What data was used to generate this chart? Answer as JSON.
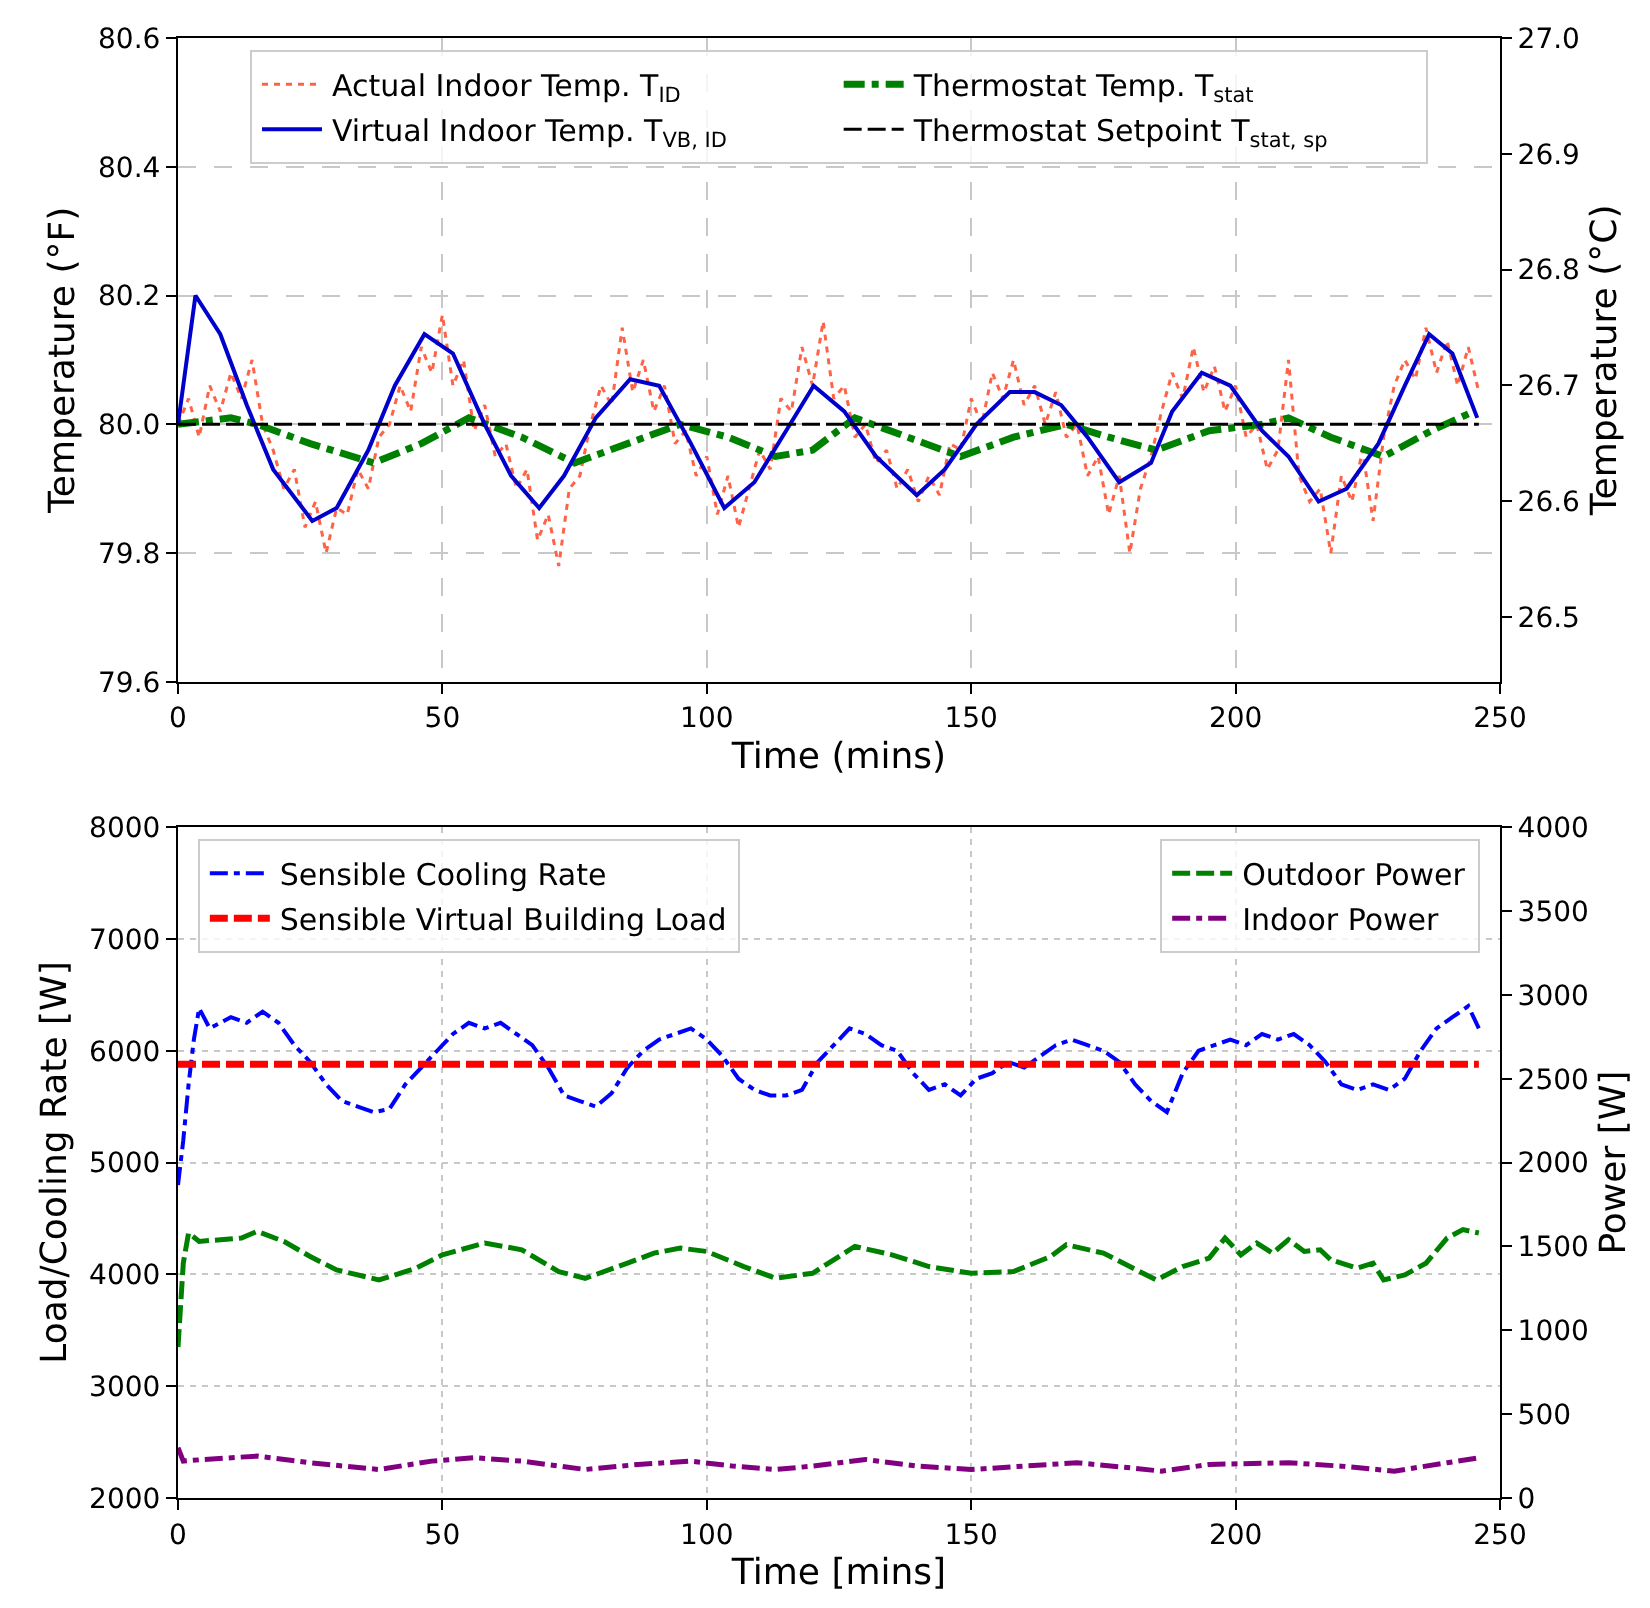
{
  "chart_data": [
    {
      "type": "line",
      "xlabel": "Time (mins)",
      "ylabel": "Temperature (°F)",
      "y2label": "Temperature (°C)",
      "xlim": [
        0,
        250
      ],
      "xticks": [
        0,
        50,
        100,
        150,
        200,
        250
      ],
      "ylim": [
        79.6,
        80.6
      ],
      "yticks": [
        79.6,
        79.8,
        {
          "value": 80.0,
          "label": "80.0"
        },
        80.2,
        80.4,
        80.6
      ],
      "y2lim": [
        26.444,
        27.0
      ],
      "y2ticks": [
        26.5,
        26.6,
        26.7,
        26.8,
        26.9,
        {
          "value": 27.0,
          "label": "27.0"
        }
      ],
      "grid": true,
      "legend": "top",
      "marker": "none",
      "series": [
        {
          "name": "Actual Indoor Temp. T$_{ID}$",
          "color": "#ff6347",
          "line_style": "dotted",
          "x": [
            0,
            2,
            4,
            6,
            8,
            10,
            12,
            14,
            16,
            18,
            20,
            22,
            24,
            26,
            28,
            30,
            32,
            34,
            36,
            38,
            40,
            42,
            44,
            46,
            48,
            50,
            52,
            54,
            56,
            58,
            60,
            62,
            64,
            66,
            68,
            70,
            72,
            74,
            76,
            78,
            80,
            82,
            84,
            86,
            88,
            90,
            92,
            94,
            96,
            98,
            100,
            102,
            104,
            106,
            108,
            110,
            112,
            114,
            116,
            118,
            120,
            122,
            124,
            126,
            128,
            130,
            132,
            134,
            136,
            138,
            140,
            142,
            144,
            146,
            148,
            150,
            152,
            154,
            156,
            158,
            160,
            162,
            164,
            166,
            168,
            170,
            172,
            174,
            176,
            178,
            180,
            182,
            184,
            186,
            188,
            190,
            192,
            194,
            196,
            198,
            200,
            202,
            204,
            206,
            208,
            210,
            212,
            214,
            216,
            218,
            220,
            222,
            224,
            226,
            228,
            230,
            232,
            234,
            236,
            238,
            240,
            242,
            244,
            246
          ],
          "values": [
            80.0,
            80.04,
            79.98,
            80.06,
            80.02,
            80.08,
            80.04,
            80.1,
            80.0,
            79.96,
            79.9,
            79.93,
            79.84,
            79.88,
            79.8,
            79.87,
            79.86,
            79.93,
            79.9,
            79.98,
            80.0,
            80.06,
            80.02,
            80.12,
            80.08,
            80.17,
            80.06,
            80.1,
            79.99,
            80.03,
            79.95,
            79.97,
            79.9,
            79.93,
            79.82,
            79.86,
            79.78,
            79.9,
            79.92,
            80.0,
            80.06,
            80.03,
            80.15,
            80.05,
            80.1,
            80.02,
            80.06,
            79.97,
            79.99,
            79.92,
            79.95,
            79.86,
            79.92,
            79.84,
            79.9,
            79.96,
            79.93,
            80.04,
            80.02,
            80.12,
            80.06,
            80.16,
            80.04,
            80.06,
            79.98,
            80.0,
            79.94,
            79.96,
            79.9,
            79.93,
            79.88,
            79.92,
            79.89,
            79.97,
            79.96,
            80.04,
            80.0,
            80.08,
            80.04,
            80.1,
            80.03,
            80.06,
            80.0,
            80.05,
            79.98,
            80.0,
            79.92,
            79.95,
            79.86,
            79.92,
            79.8,
            79.9,
            79.95,
            80.02,
            80.08,
            80.04,
            80.12,
            80.05,
            80.09,
            80.02,
            80.06,
            79.98,
            80.0,
            79.93,
            79.96,
            80.1,
            79.92,
            79.88,
            79.9,
            79.8,
            79.92,
            79.88,
            79.96,
            79.85,
            79.98,
            80.06,
            80.1,
            80.07,
            80.15,
            80.08,
            80.13,
            80.06,
            80.12,
            80.05
          ]
        },
        {
          "name": "Thermostat Temp. T$_{stat}$",
          "color": "#008000",
          "line_style": "dashdot",
          "x": [
            0,
            10,
            15,
            25,
            37,
            46,
            55,
            65,
            75,
            85,
            95,
            104,
            113,
            120,
            128,
            138,
            148,
            158,
            168,
            176,
            185,
            195,
            205,
            210,
            218,
            228,
            237,
            245
          ],
          "values": [
            80.0,
            80.01,
            80.0,
            79.97,
            79.94,
            79.97,
            80.01,
            79.98,
            79.94,
            79.97,
            80.0,
            79.98,
            79.95,
            79.96,
            80.01,
            79.98,
            79.95,
            79.98,
            80.0,
            79.98,
            79.96,
            79.99,
            80.0,
            80.01,
            79.98,
            79.95,
            79.99,
            80.02
          ]
        },
        {
          "name": "Virtual Indoor Temp. T$_{VB, ID}$",
          "color": "#0000cd",
          "line_style": "solid",
          "x": [
            0,
            3.3,
            8,
            13,
            18,
            25.4,
            30,
            36,
            41,
            46.6,
            52,
            58,
            63,
            68.3,
            73,
            79,
            85.5,
            91,
            97,
            103.3,
            109,
            115,
            120.2,
            126,
            132,
            139.7,
            145,
            151,
            157.3,
            162,
            167,
            172,
            178,
            184,
            188,
            193.6,
            199,
            205,
            210,
            215.7,
            221,
            227,
            232,
            236.6,
            241,
            245.7
          ],
          "values": [
            80.0,
            80.2,
            80.14,
            80.03,
            79.93,
            79.85,
            79.87,
            79.96,
            80.06,
            80.14,
            80.11,
            80.0,
            79.92,
            79.87,
            79.92,
            80.01,
            80.07,
            80.06,
            79.97,
            79.87,
            79.91,
            79.99,
            80.06,
            80.02,
            79.95,
            79.89,
            79.93,
            80.0,
            80.05,
            80.05,
            80.03,
            79.98,
            79.91,
            79.94,
            80.02,
            80.08,
            80.06,
            79.99,
            79.95,
            79.88,
            79.9,
            79.97,
            80.06,
            80.14,
            80.11,
            80.01
          ]
        },
        {
          "name": "Thermostat Setpoint T$_{stat, sp}$",
          "color": "#000000",
          "line_style": "dashed",
          "x": [
            0,
            246
          ],
          "values": [
            80.0,
            80.0
          ]
        }
      ]
    },
    {
      "type": "line",
      "xlabel": "Time [mins]",
      "ylabel": "Load/Cooling Rate [W]",
      "y2label": "Power [W]",
      "xlim": [
        0,
        250
      ],
      "xticks": [
        0,
        50,
        100,
        150,
        200,
        250
      ],
      "ylim": [
        2000,
        8000
      ],
      "yticks": [
        2000,
        3000,
        4000,
        5000,
        6000,
        7000,
        8000
      ],
      "y2lim": [
        0,
        4000
      ],
      "y2ticks": [
        0,
        500,
        1000,
        1500,
        2000,
        2500,
        3000,
        3500,
        4000
      ],
      "grid": true,
      "legend": "top left",
      "marker": "none",
      "series": [
        {
          "name": "Sensible Cooling Rate",
          "color": "#0000ff",
          "line_style": "dashdot",
          "x": [
            0,
            1,
            2,
            3,
            4,
            6,
            8,
            10,
            13,
            16,
            19,
            22,
            25,
            28,
            31,
            34,
            37,
            40,
            43,
            46,
            49,
            52,
            55,
            58,
            61,
            64,
            67,
            70,
            73,
            76,
            79,
            82,
            85,
            88,
            91,
            94,
            97,
            100,
            103,
            106,
            109,
            112,
            115,
            118,
            121,
            124,
            127,
            130,
            133,
            136,
            139,
            142,
            145,
            148,
            151,
            154,
            157,
            160,
            163,
            166,
            169,
            172,
            175,
            178,
            181,
            184,
            187,
            190,
            193,
            196,
            199,
            202,
            205,
            208,
            211,
            214,
            217,
            220,
            223,
            226,
            229,
            232,
            235,
            238,
            241,
            244,
            246
          ],
          "values": [
            4800,
            5200,
            5700,
            6100,
            6380,
            6200,
            6250,
            6300,
            6250,
            6350,
            6250,
            6050,
            5900,
            5700,
            5550,
            5500,
            5450,
            5480,
            5700,
            5850,
            6000,
            6150,
            6250,
            6200,
            6250,
            6150,
            6050,
            5850,
            5600,
            5550,
            5500,
            5620,
            5850,
            6000,
            6100,
            6150,
            6200,
            6100,
            5950,
            5750,
            5650,
            5600,
            5600,
            5650,
            5900,
            6050,
            6200,
            6150,
            6050,
            6000,
            5800,
            5650,
            5700,
            5600,
            5750,
            5800,
            5900,
            5850,
            5950,
            6050,
            6100,
            6050,
            6000,
            5900,
            5700,
            5550,
            5450,
            5800,
            6000,
            6050,
            6100,
            6050,
            6150,
            6100,
            6150,
            6050,
            5900,
            5700,
            5650,
            5700,
            5650,
            5750,
            6000,
            6200,
            6300,
            6400,
            6200
          ]
        },
        {
          "name": "Sensible Virtual Building Load",
          "color": "#ff0000",
          "line_style": "dashed",
          "x": [
            0,
            246
          ],
          "values": [
            5880,
            5880
          ]
        },
        {
          "name": "Outdoor Power",
          "color": "#008000",
          "line_style": "dashed",
          "axis": "y2",
          "x": [
            0,
            1,
            2,
            4,
            8,
            12,
            15,
            20,
            25,
            30,
            38,
            45,
            50,
            58,
            65,
            72,
            77,
            85,
            90,
            95,
            100,
            107,
            113,
            120,
            128,
            135,
            142,
            150,
            158,
            165,
            168,
            175,
            180,
            185,
            190,
            195,
            198,
            201,
            204,
            207,
            210,
            213,
            216,
            218,
            220,
            223,
            226,
            228,
            232,
            236,
            240,
            243,
            246
          ],
          "values": [
            900,
            1400,
            1580,
            1530,
            1540,
            1550,
            1590,
            1530,
            1440,
            1360,
            1300,
            1370,
            1450,
            1520,
            1480,
            1350,
            1310,
            1400,
            1460,
            1490,
            1470,
            1380,
            1310,
            1340,
            1500,
            1450,
            1380,
            1340,
            1350,
            1440,
            1510,
            1460,
            1380,
            1300,
            1380,
            1430,
            1550,
            1450,
            1520,
            1460,
            1540,
            1470,
            1480,
            1420,
            1400,
            1370,
            1400,
            1300,
            1330,
            1400,
            1550,
            1600,
            1580
          ]
        },
        {
          "name": "Indoor Power",
          "color": "#800080",
          "line_style": "dashdot",
          "axis": "y2",
          "x": [
            0,
            1,
            5,
            15,
            25,
            38,
            48,
            56,
            65,
            77,
            87,
            97,
            105,
            113,
            120,
            130,
            140,
            150,
            160,
            170,
            180,
            186,
            195,
            210,
            220,
            230,
            240,
            246
          ],
          "values": [
            300,
            220,
            230,
            250,
            210,
            170,
            220,
            240,
            220,
            170,
            200,
            220,
            190,
            170,
            190,
            230,
            190,
            170,
            190,
            210,
            180,
            160,
            200,
            210,
            190,
            160,
            210,
            240
          ]
        }
      ]
    }
  ]
}
